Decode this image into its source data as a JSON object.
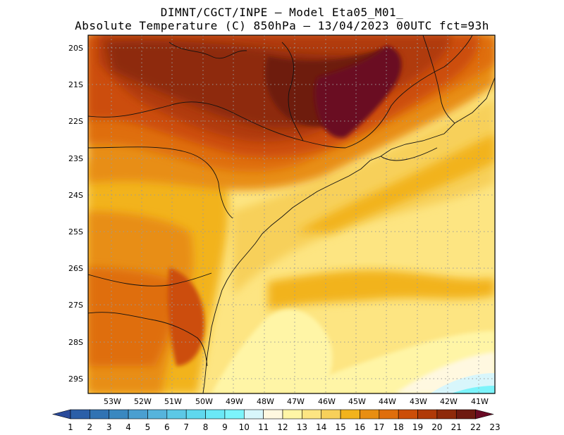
{
  "header": {
    "line1": "DIMNT/CGCT/INPE –  Model Eta05_M01_",
    "line2": "Absolute Temperature (C) 850hPa –  13/04/2023 00UTC fct=93h"
  },
  "map": {
    "lat_labels": [
      "20S",
      "21S",
      "22S",
      "23S",
      "24S",
      "25S",
      "26S",
      "27S",
      "28S",
      "29S"
    ],
    "lon_labels": [
      "53W",
      "52W",
      "51W",
      "50W",
      "49W",
      "48W",
      "47W",
      "46W",
      "45W",
      "44W",
      "43W",
      "42W",
      "41W"
    ]
  },
  "colorbar": {
    "labels": [
      "1",
      "2",
      "3",
      "4",
      "5",
      "6",
      "7",
      "8",
      "9",
      "10",
      "11",
      "12",
      "13",
      "14",
      "15",
      "16",
      "17",
      "18",
      "19",
      "20",
      "21",
      "22",
      "23"
    ],
    "colors": [
      "#2a4a9a",
      "#2b5fa8",
      "#3173b3",
      "#3a88c0",
      "#4a9fd0",
      "#56b4dc",
      "#5cc8e6",
      "#5fd8ee",
      "#6ae8f6",
      "#7cf4fb",
      "#d8f6fb",
      "#fff8e0",
      "#fff5a6",
      "#fde582",
      "#f7d05a",
      "#f2b31c",
      "#e88e12",
      "#df6e0c",
      "#cc4e08",
      "#b03a08",
      "#8e2a0a",
      "#6e1a10",
      "#6a0a24"
    ]
  }
}
